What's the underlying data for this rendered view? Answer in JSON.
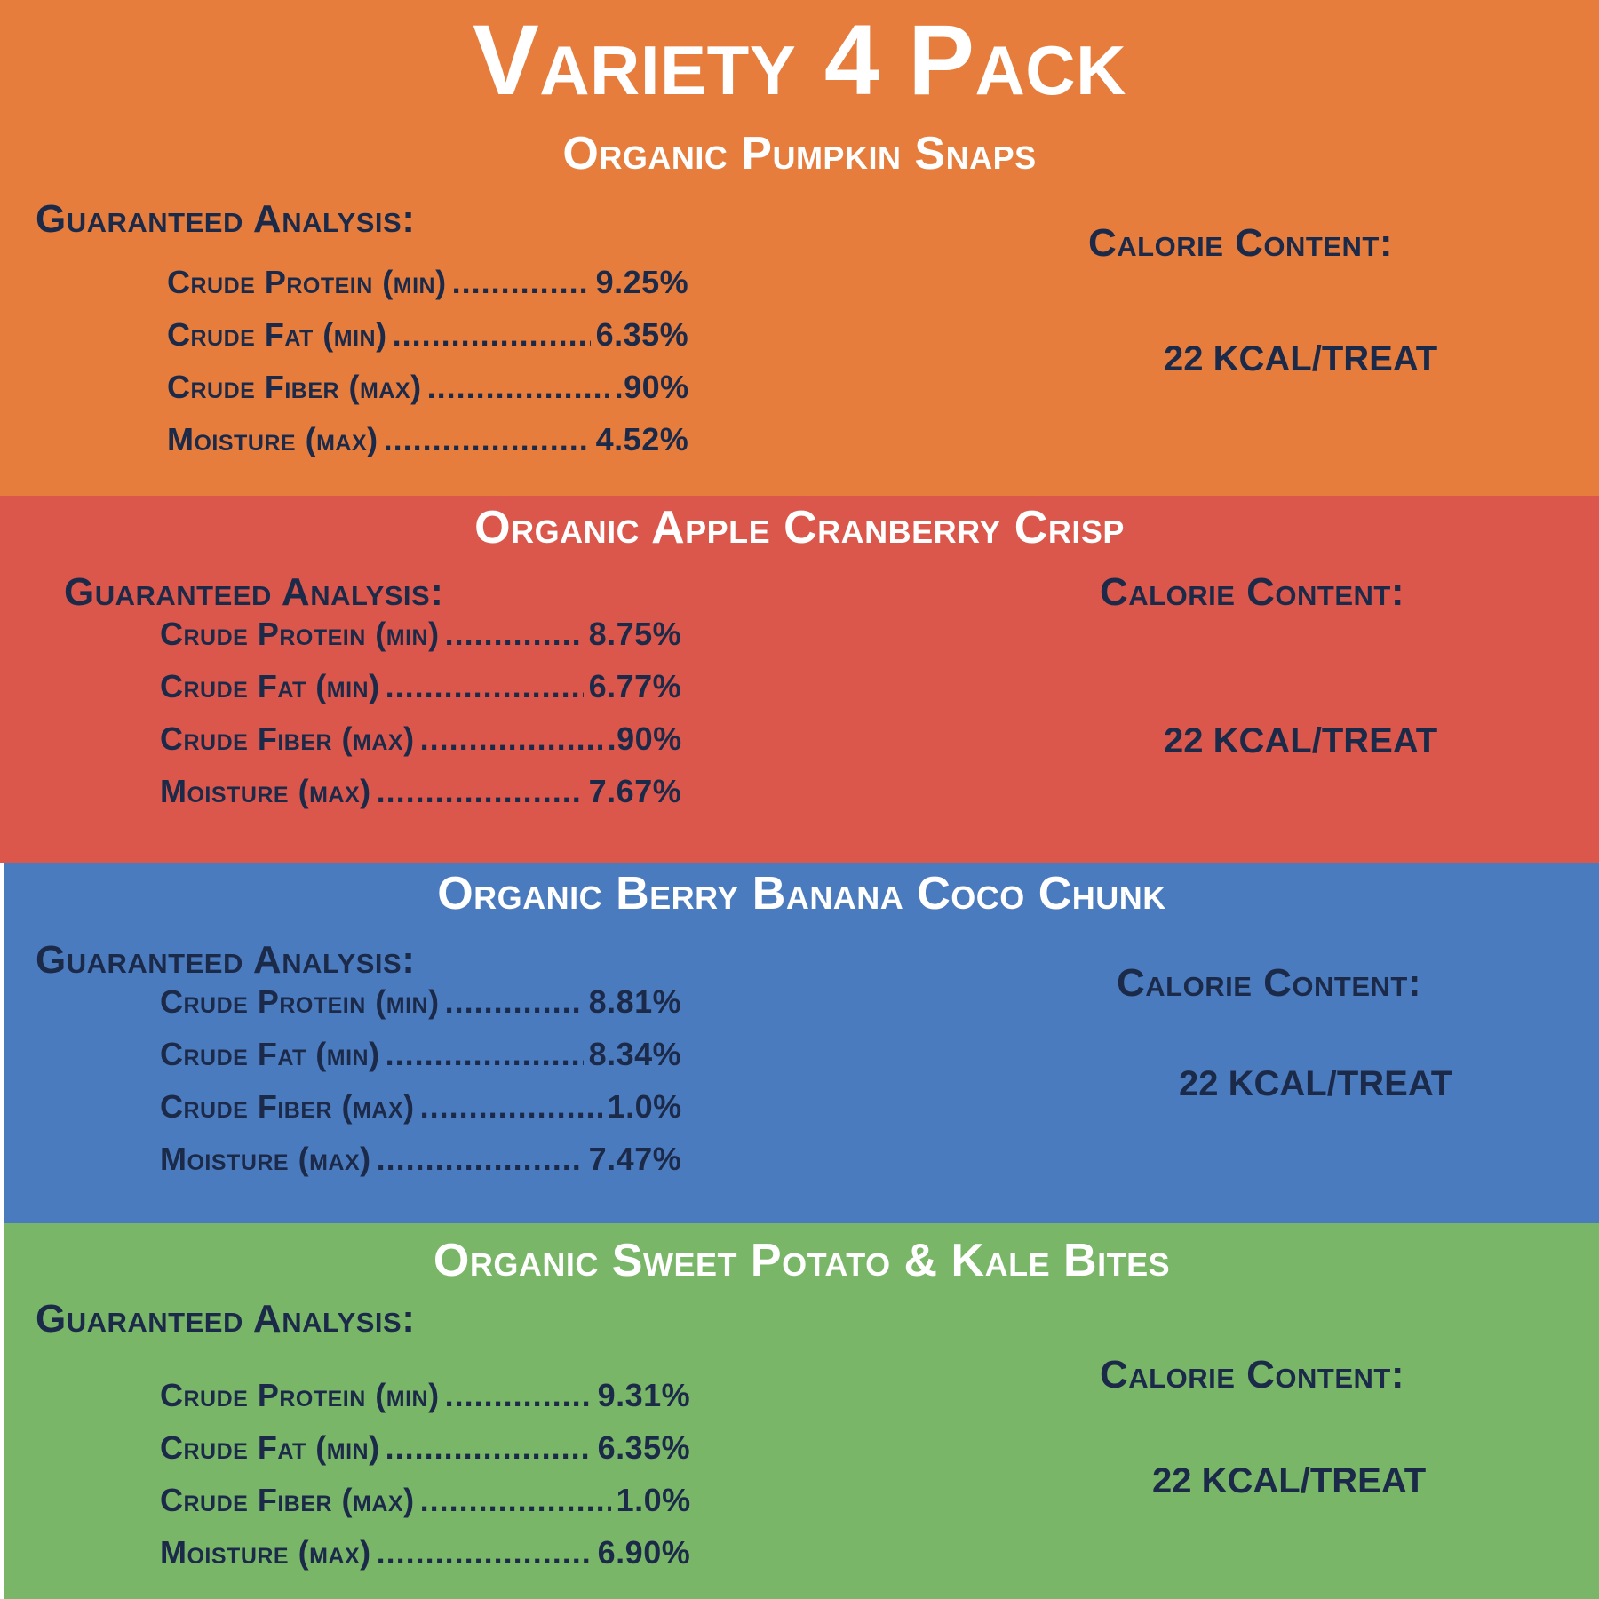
{
  "title": "Variety 4 Pack",
  "colors": {
    "orange": "#e77d3c",
    "red": "#db564b",
    "blue": "#4b7bbf",
    "green": "#79b668",
    "white": "#ffffff",
    "navy": "#1c2a4a"
  },
  "panels": [
    {
      "name": "Organic Pumpkin Snaps",
      "ga_heading": "Guaranteed Analysis:",
      "cc_heading": "Calorie Content:",
      "kcal": "22 KCAL/TREAT",
      "rows": [
        {
          "label": "Crude Protein (min)",
          "value": "9.25%"
        },
        {
          "label": "Crude Fat (min)",
          "value": "6.35%"
        },
        {
          "label": "Crude Fiber (max)",
          "value": ".90%"
        },
        {
          "label": "Moisture (max)",
          "value": "4.52%"
        }
      ]
    },
    {
      "name": "Organic Apple Cranberry Crisp",
      "ga_heading": "Guaranteed Analysis:",
      "cc_heading": "Calorie Content:",
      "kcal": "22 KCAL/TREAT",
      "rows": [
        {
          "label": "Crude Protein (min)",
          "value": "8.75%"
        },
        {
          "label": "Crude Fat (min)",
          "value": "6.77%"
        },
        {
          "label": "Crude Fiber (max)",
          "value": ".90%"
        },
        {
          "label": "Moisture (max)",
          "value": "7.67%"
        }
      ]
    },
    {
      "name": "Organic Berry Banana Coco Chunk",
      "ga_heading": "Guaranteed Analysis:",
      "cc_heading": "Calorie Content:",
      "kcal": "22 KCAL/TREAT",
      "rows": [
        {
          "label": "Crude Protein (min)",
          "value": "8.81%"
        },
        {
          "label": "Crude Fat (min)",
          "value": "8.34%"
        },
        {
          "label": "Crude Fiber (max)",
          "value": "1.0%"
        },
        {
          "label": "Moisture (max)",
          "value": "7.47%"
        }
      ]
    },
    {
      "name": "Organic Sweet Potato & Kale Bites",
      "ga_heading": "Guaranteed Analysis:",
      "cc_heading": "Calorie Content:",
      "kcal": "22 KCAL/TREAT",
      "rows": [
        {
          "label": "Crude Protein (min)",
          "value": "9.31%"
        },
        {
          "label": "Crude Fat (min)",
          "value": "6.35%"
        },
        {
          "label": "Crude Fiber (max)",
          "value": "1.0%"
        },
        {
          "label": "Moisture (max)",
          "value": "6.90%"
        }
      ]
    }
  ]
}
